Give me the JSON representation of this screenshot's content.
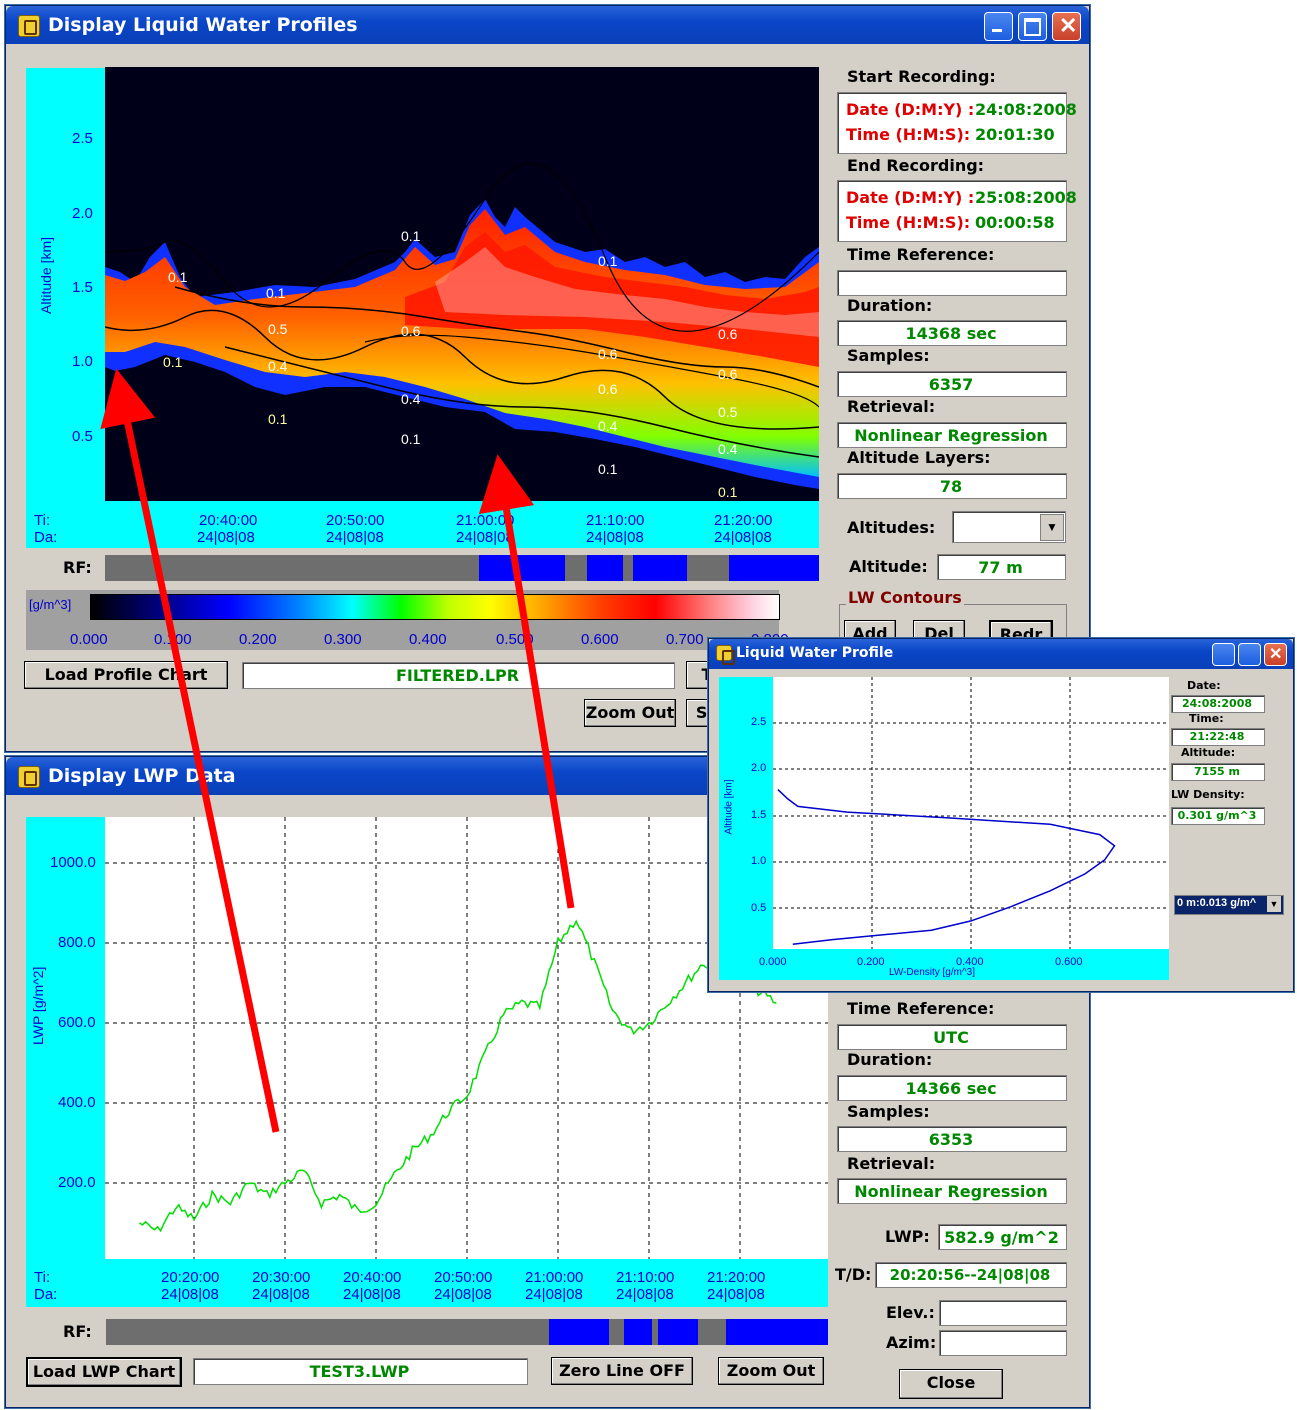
{
  "profiles_window": {
    "title": "Display Liquid Water Profiles",
    "ylabel": "Altitude [km]",
    "yticks": [
      "2.5",
      "2.0",
      "1.5",
      "1.0",
      "0.5"
    ],
    "xrow_labels": [
      "Ti:",
      "Da:"
    ],
    "xticks": [
      {
        "time": "20:40:00",
        "date": "24|08|08"
      },
      {
        "time": "20:50:00",
        "date": "24|08|08"
      },
      {
        "time": "21:00:00",
        "date": "24|08|08"
      },
      {
        "time": "21:10:00",
        "date": "24|08|08"
      },
      {
        "time": "21:20:00",
        "date": "24|08|08"
      }
    ],
    "contour_labels": [
      "0.1",
      "0.1",
      "0.1",
      "0.1",
      "0.1",
      "0.1",
      "0.1",
      "0.1",
      "0.1",
      "0.5",
      "0.6",
      "0.6",
      "0.6",
      "0.6",
      "0.6",
      "0.4",
      "0.4",
      "0.4",
      "0.4",
      "0.5"
    ],
    "rf_label": "RF:",
    "colorbar_unit": "[g/m^3]",
    "colorbar_ticks": [
      "0.000",
      "0.100",
      "0.200",
      "0.300",
      "0.400",
      "0.500",
      "0.600",
      "0.700",
      "0.800"
    ],
    "load_button": "Load Profile Chart",
    "filename": "FILTERED.LPR",
    "zoom_out": "Zoom Out",
    "cut_button_1": "T",
    "cut_button_2": "Se",
    "start_recording": "Start Recording:",
    "end_recording": "End Recording:",
    "date_label": "Date (D:M:Y) :",
    "time_label": "Time (H:M:S):",
    "start_date": "24:08:2008",
    "start_time": "20:01:30",
    "end_date": "25:08:2008",
    "end_time": "00:00:58",
    "time_reference_label": "Time Reference:",
    "time_reference": "",
    "duration_label": "Duration:",
    "duration": "14368 sec",
    "samples_label": "Samples:",
    "samples": "6357",
    "retrieval_label": "Retrieval:",
    "retrieval": "Nonlinear Regression",
    "layers_label": "Altitude Layers:",
    "layers": "78",
    "altitudes_label": "Altitudes:",
    "altitude_label": "Altitude:",
    "altitude": "77 m",
    "contours_group": "LW Contours",
    "add": "Add",
    "del": "Del",
    "redr": "Redr"
  },
  "lwp_window": {
    "title": "Display LWP Data",
    "ylabel": "LWP [g/m^2]",
    "yticks": [
      "1000.0",
      "800.0",
      "600.0",
      "400.0",
      "200.0"
    ],
    "xrow_labels": [
      "Ti:",
      "Da:"
    ],
    "xticks": [
      {
        "time": "20:20:00",
        "date": "24|08|08"
      },
      {
        "time": "20:30:00",
        "date": "24|08|08"
      },
      {
        "time": "20:40:00",
        "date": "24|08|08"
      },
      {
        "time": "20:50:00",
        "date": "24|08|08"
      },
      {
        "time": "21:00:00",
        "date": "24|08|08"
      },
      {
        "time": "21:10:00",
        "date": "24|08|08"
      },
      {
        "time": "21:20:00",
        "date": "24|08|08"
      }
    ],
    "rf_label": "RF:",
    "load_button": "Load LWP Chart",
    "filename": "TEST3.LWP",
    "zero_line": "Zero Line OFF",
    "zoom_out": "Zoom Out",
    "time_reference_label": "Time Reference:",
    "time_reference": "UTC",
    "duration_label": "Duration:",
    "duration": "14366 sec",
    "samples_label": "Samples:",
    "samples": "6353",
    "retrieval_label": "Retrieval:",
    "retrieval": "Nonlinear Regression",
    "lwp_label": "LWP:",
    "lwp": "582.9 g/m^2",
    "td_label": "T/D:",
    "td": "20:20:56--24|08|08",
    "elev_label": "Elev.:",
    "azim_label": "Azim:",
    "close": "Close"
  },
  "profile_window": {
    "title": "Liquid Water Profile",
    "date_label": "Date:",
    "date": "24:08:2008",
    "time_label": "Time:",
    "time": "21:22:48",
    "altitude_label": "Altitude:",
    "altitude": "7155 m",
    "density_label": "LW Density:",
    "density": "0.301 g/m^3",
    "dropdown": "0 m:0.013 g/m^",
    "ylabel": "Altitude [km]",
    "xlabel": "LW-Density [g/m^3]",
    "yticks": [
      "2.5",
      "2.0",
      "1.5",
      "1.0",
      "0.5"
    ],
    "xticks": [
      "0.000",
      "0.200",
      "0.400",
      "0.600"
    ]
  },
  "chart_data": [
    {
      "type": "line",
      "title": "",
      "xlabel": "",
      "ylabel": "LWP [g/m^2]",
      "ylim": [
        0,
        1100
      ],
      "x": [
        "20:14",
        "20:16",
        "20:18",
        "20:20",
        "20:22",
        "20:24",
        "20:26",
        "20:28",
        "20:30",
        "20:32",
        "20:34",
        "20:36",
        "20:38",
        "20:40",
        "20:42",
        "20:44",
        "20:46",
        "20:48",
        "20:50",
        "20:52",
        "20:54",
        "20:56",
        "20:58",
        "21:00",
        "21:02",
        "21:04",
        "21:06",
        "21:08",
        "21:10",
        "21:12",
        "21:14",
        "21:16",
        "21:18",
        "21:20",
        "21:22",
        "21:24"
      ],
      "series": [
        {
          "values": [
            100,
            80,
            140,
            110,
            170,
            150,
            200,
            170,
            200,
            230,
            150,
            170,
            130,
            150,
            220,
            280,
            320,
            380,
            420,
            520,
            620,
            650,
            640,
            800,
            860,
            750,
            630,
            580,
            600,
            650,
            700,
            750,
            720,
            700,
            680,
            650
          ]
        }
      ],
      "color": "#00dd00"
    },
    {
      "type": "line",
      "title": "",
      "xlabel": "LW-Density [g/m^3]",
      "ylabel": "Altitude [km]",
      "xlim": [
        0,
        0.8
      ],
      "ylim": [
        0,
        2.9
      ],
      "series": [
        {
          "x": [
            0.04,
            0.12,
            0.22,
            0.32,
            0.4,
            0.48,
            0.56,
            0.63,
            0.67,
            0.69,
            0.66,
            0.56,
            0.35,
            0.15,
            0.05,
            0.03,
            0.01
          ],
          "y": [
            0.05,
            0.1,
            0.15,
            0.2,
            0.3,
            0.45,
            0.62,
            0.8,
            0.95,
            1.1,
            1.22,
            1.33,
            1.4,
            1.46,
            1.52,
            1.6,
            1.7
          ]
        }
      ],
      "color": "#0000cc"
    }
  ]
}
